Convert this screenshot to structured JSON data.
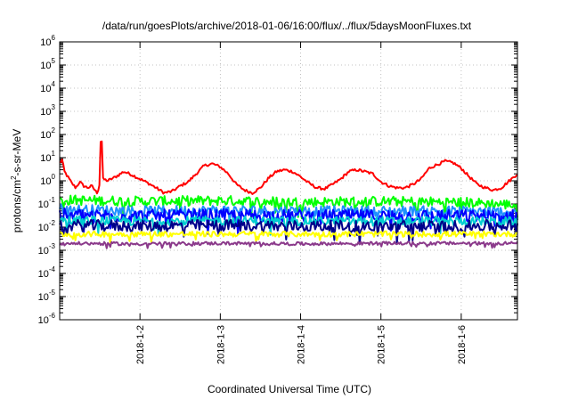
{
  "chart_data": {
    "type": "line",
    "title": "/data/run/goesPlots/archive/2018-01-06/16:00/flux/../flux/5daysMoonFluxes.txt",
    "xlabel": "Coordinated Universal Time (UTC)",
    "ylabel": "protons/cm²-s-sr-MeV",
    "ylabel_parts": {
      "base": "protons/cm",
      "sup": "2",
      "rest": "-s-sr-MeV"
    },
    "yscale": "log",
    "ylim": [
      1e-06,
      1000000.0
    ],
    "xlim_days": [
      1.0,
      6.7
    ],
    "grid": true,
    "y_ticks": [
      {
        "value": 1e-06,
        "base": "10",
        "exp": "-6"
      },
      {
        "value": 1e-05,
        "base": "10",
        "exp": "-5"
      },
      {
        "value": 0.0001,
        "base": "10",
        "exp": "-4"
      },
      {
        "value": 0.001,
        "base": "10",
        "exp": "-3"
      },
      {
        "value": 0.01,
        "base": "10",
        "exp": "-2"
      },
      {
        "value": 0.1,
        "base": "10",
        "exp": "-1"
      },
      {
        "value": 1,
        "base": "10",
        "exp": "0"
      },
      {
        "value": 10,
        "base": "10",
        "exp": "1"
      },
      {
        "value": 100,
        "base": "10",
        "exp": "2"
      },
      {
        "value": 1000,
        "base": "10",
        "exp": "3"
      },
      {
        "value": 10000,
        "base": "10",
        "exp": "4"
      },
      {
        "value": 100000,
        "base": "10",
        "exp": "5"
      },
      {
        "value": 1000000,
        "base": "10",
        "exp": "6"
      }
    ],
    "x_ticks": [
      {
        "day": 2,
        "label": "2018-1-2"
      },
      {
        "day": 3,
        "label": "2018-1-3"
      },
      {
        "day": 4,
        "label": "2018-1-4"
      },
      {
        "day": 5,
        "label": "2018-1-5"
      },
      {
        "day": 6,
        "label": "2018-1-6"
      }
    ],
    "series": [
      {
        "color": "#ff0000",
        "noise": 0.06,
        "points": [
          [
            1.0,
            6.0
          ],
          [
            1.03,
            8.0
          ],
          [
            1.06,
            2.5
          ],
          [
            1.1,
            1.5
          ],
          [
            1.15,
            0.8
          ],
          [
            1.2,
            0.5
          ],
          [
            1.25,
            0.9
          ],
          [
            1.3,
            0.6
          ],
          [
            1.35,
            0.5
          ],
          [
            1.4,
            0.6
          ],
          [
            1.45,
            0.35
          ],
          [
            1.47,
            0.3
          ],
          [
            1.5,
            0.8
          ],
          [
            1.51,
            50
          ],
          [
            1.53,
            50
          ],
          [
            1.54,
            1.2
          ],
          [
            1.6,
            1.0
          ],
          [
            1.7,
            1.5
          ],
          [
            1.8,
            2.5
          ],
          [
            1.9,
            1.8
          ],
          [
            2.0,
            1.2
          ],
          [
            2.1,
            0.8
          ],
          [
            2.2,
            0.5
          ],
          [
            2.3,
            0.3
          ],
          [
            2.4,
            0.35
          ],
          [
            2.5,
            0.6
          ],
          [
            2.6,
            0.9
          ],
          [
            2.7,
            2.0
          ],
          [
            2.8,
            4.5
          ],
          [
            2.9,
            5.5
          ],
          [
            3.0,
            4.0
          ],
          [
            3.1,
            2.0
          ],
          [
            3.2,
            0.7
          ],
          [
            3.3,
            0.4
          ],
          [
            3.4,
            0.3
          ],
          [
            3.5,
            0.5
          ],
          [
            3.6,
            1.3
          ],
          [
            3.7,
            2.5
          ],
          [
            3.8,
            3.0
          ],
          [
            3.9,
            2.5
          ],
          [
            4.0,
            1.5
          ],
          [
            4.1,
            0.8
          ],
          [
            4.2,
            0.5
          ],
          [
            4.3,
            0.45
          ],
          [
            4.4,
            0.7
          ],
          [
            4.5,
            1.2
          ],
          [
            4.6,
            2.5
          ],
          [
            4.7,
            3.0
          ],
          [
            4.8,
            2.5
          ],
          [
            4.9,
            2.0
          ],
          [
            5.0,
            0.9
          ],
          [
            5.1,
            0.6
          ],
          [
            5.2,
            0.5
          ],
          [
            5.3,
            0.5
          ],
          [
            5.4,
            0.7
          ],
          [
            5.5,
            1.2
          ],
          [
            5.6,
            3.5
          ],
          [
            5.7,
            5.0
          ],
          [
            5.8,
            7.0
          ],
          [
            5.9,
            6.0
          ],
          [
            6.0,
            3.5
          ],
          [
            6.1,
            1.5
          ],
          [
            6.2,
            0.7
          ],
          [
            6.3,
            0.5
          ],
          [
            6.4,
            0.4
          ],
          [
            6.5,
            0.5
          ],
          [
            6.6,
            1.0
          ],
          [
            6.7,
            2.0
          ]
        ]
      },
      {
        "color": "#00ff00",
        "noise": 0.22,
        "points": [
          [
            1.0,
            0.15
          ],
          [
            2.0,
            0.13
          ],
          [
            3.0,
            0.14
          ],
          [
            4.0,
            0.12
          ],
          [
            5.0,
            0.13
          ],
          [
            6.0,
            0.12
          ],
          [
            6.7,
            0.09
          ]
        ]
      },
      {
        "color": "#1e90ff",
        "noise": 0.22,
        "points": [
          [
            1.0,
            0.06
          ],
          [
            2.0,
            0.05
          ],
          [
            3.0,
            0.055
          ],
          [
            4.0,
            0.05
          ],
          [
            5.0,
            0.05
          ],
          [
            6.0,
            0.05
          ],
          [
            6.7,
            0.045
          ]
        ]
      },
      {
        "color": "#0000ff",
        "noise": 0.28,
        "points": [
          [
            1.0,
            0.035
          ],
          [
            2.0,
            0.03
          ],
          [
            3.0,
            0.032
          ],
          [
            4.0,
            0.03
          ],
          [
            5.0,
            0.03
          ],
          [
            6.0,
            0.03
          ],
          [
            6.7,
            0.03
          ]
        ]
      },
      {
        "color": "#00ced1",
        "noise": 0.2,
        "points": [
          [
            1.0,
            0.02
          ],
          [
            2.0,
            0.018
          ],
          [
            3.0,
            0.019
          ],
          [
            4.0,
            0.018
          ],
          [
            5.0,
            0.018
          ],
          [
            6.0,
            0.018
          ],
          [
            6.7,
            0.017
          ]
        ]
      },
      {
        "color": "#00008b",
        "noise": 0.25,
        "points": [
          [
            1.0,
            0.012
          ],
          [
            2.0,
            0.011
          ],
          [
            3.0,
            0.012
          ],
          [
            4.0,
            0.011
          ],
          [
            5.0,
            0.011
          ],
          [
            6.0,
            0.011
          ],
          [
            6.7,
            0.012
          ]
        ]
      },
      {
        "color": "#ffff00",
        "noise": 0.12,
        "points": [
          [
            1.0,
            0.005
          ],
          [
            2.0,
            0.005
          ],
          [
            3.0,
            0.005
          ],
          [
            4.0,
            0.005
          ],
          [
            5.0,
            0.005
          ],
          [
            6.0,
            0.005
          ],
          [
            6.7,
            0.005
          ]
        ]
      },
      {
        "color": "#8b3a8b",
        "noise": 0.07,
        "points": [
          [
            1.0,
            0.002
          ],
          [
            2.0,
            0.0019
          ],
          [
            3.0,
            0.002
          ],
          [
            4.0,
            0.0019
          ],
          [
            5.0,
            0.002
          ],
          [
            6.0,
            0.002
          ],
          [
            6.7,
            0.002
          ]
        ]
      }
    ]
  }
}
